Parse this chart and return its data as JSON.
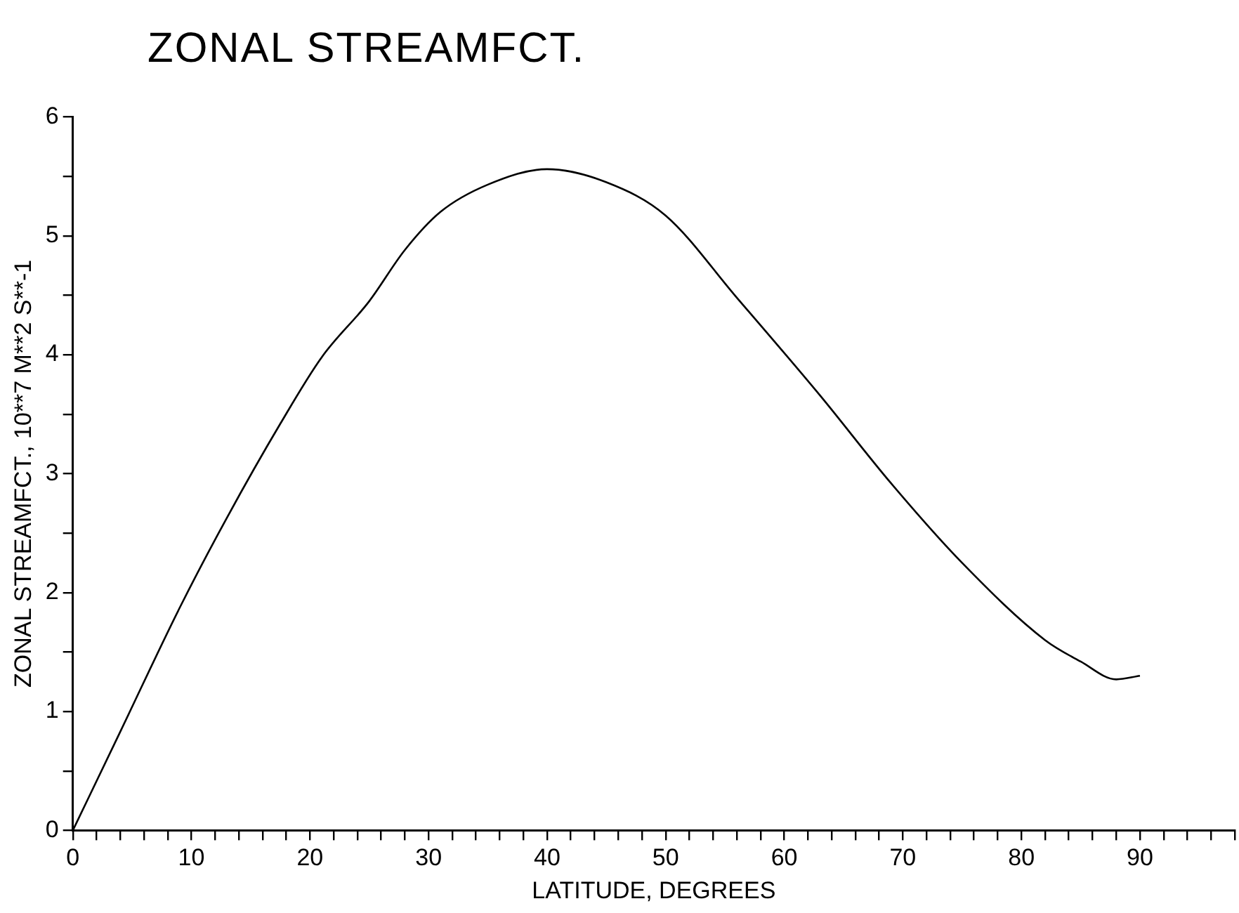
{
  "chart_data": {
    "type": "line",
    "title": "ZONAL STREAMFCT.",
    "xlabel": "LATITUDE, DEGREES",
    "ylabel": "ZONAL STREAMFCT., 10**7 M**2 S**-1",
    "series": [
      {
        "color": "#000000",
        "x": [
          0,
          4,
          9,
          13,
          17.5,
          21,
          25,
          28,
          31,
          35,
          40,
          45,
          50,
          56,
          63,
          69,
          75,
          82,
          85,
          88,
          90
        ],
        "values": [
          0,
          0.83,
          1.87,
          2.63,
          3.42,
          3.98,
          4.45,
          4.88,
          5.2,
          5.43,
          5.56,
          5.45,
          5.17,
          4.48,
          3.66,
          2.92,
          2.25,
          1.6,
          1.42,
          1.27,
          1.3
        ]
      }
    ],
    "xlim": [
      0,
      98
    ],
    "ylim": [
      0,
      6
    ],
    "xticks": [
      0,
      {
        "value": 2,
        "label": null
      },
      {
        "value": 4,
        "label": null
      },
      {
        "value": 6,
        "label": null
      },
      {
        "value": 8,
        "label": null
      },
      10,
      {
        "value": 12,
        "label": null
      },
      {
        "value": 14,
        "label": null
      },
      {
        "value": 16,
        "label": null
      },
      {
        "value": 18,
        "label": null
      },
      20,
      {
        "value": 22,
        "label": null
      },
      {
        "value": 24,
        "label": null
      },
      {
        "value": 26,
        "label": null
      },
      {
        "value": 28,
        "label": null
      },
      30,
      {
        "value": 32,
        "label": null
      },
      {
        "value": 34,
        "label": null
      },
      {
        "value": 36,
        "label": null
      },
      {
        "value": 38,
        "label": null
      },
      40,
      {
        "value": 42,
        "label": null
      },
      {
        "value": 44,
        "label": null
      },
      {
        "value": 46,
        "label": null
      },
      {
        "value": 48,
        "label": null
      },
      50,
      {
        "value": 52,
        "label": null
      },
      {
        "value": 54,
        "label": null
      },
      {
        "value": 56,
        "label": null
      },
      {
        "value": 58,
        "label": null
      },
      60,
      {
        "value": 62,
        "label": null
      },
      {
        "value": 64,
        "label": null
      },
      {
        "value": 66,
        "label": null
      },
      {
        "value": 68,
        "label": null
      },
      70,
      {
        "value": 72,
        "label": null
      },
      {
        "value": 74,
        "label": null
      },
      {
        "value": 76,
        "label": null
      },
      {
        "value": 78,
        "label": null
      },
      80,
      {
        "value": 82,
        "label": null
      },
      {
        "value": 84,
        "label": null
      },
      {
        "value": 86,
        "label": null
      },
      {
        "value": 88,
        "label": null
      },
      90,
      {
        "value": 92,
        "label": null
      },
      {
        "value": 94,
        "label": null
      },
      {
        "value": 96,
        "label": null
      },
      {
        "value": 98,
        "label": null
      }
    ],
    "yticks": [
      0,
      {
        "value": 0.5,
        "label": null
      },
      1,
      {
        "value": 1.5,
        "label": null
      },
      2,
      {
        "value": 2.5,
        "label": null
      },
      3,
      {
        "value": 3.5,
        "label": null
      },
      4,
      {
        "value": 4.5,
        "label": null
      },
      5,
      {
        "value": 5.5,
        "label": null
      },
      6
    ],
    "grid": false,
    "legend": false,
    "marker": "none",
    "line_style": "solid"
  }
}
